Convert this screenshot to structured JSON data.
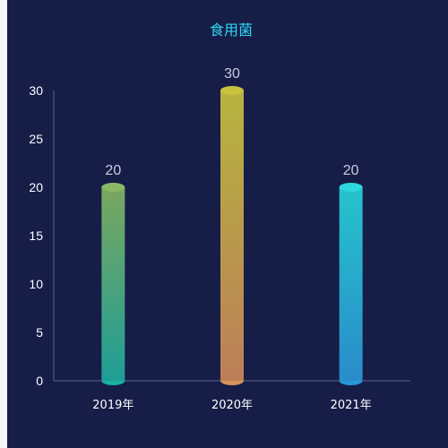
{
  "chart_data": {
    "type": "bar",
    "title": "食用菌",
    "categories": [
      "2019年",
      "2020年",
      "2021年"
    ],
    "values": [
      20,
      30,
      20
    ],
    "ylim": [
      0,
      30
    ],
    "yticks": [
      0,
      5,
      10,
      15,
      20,
      25,
      30
    ],
    "grid": false,
    "legend": "none",
    "bar_gradients": [
      {
        "top": "#7aa75f",
        "bottom": "#1e9e96"
      },
      {
        "top": "#b6b43f",
        "bottom": "#bc7f58"
      },
      {
        "top": "#25c3cc",
        "bottom": "#2a8ccb"
      }
    ],
    "cap_colors": [
      {
        "top": "#8ab966",
        "bottom": "#1bb0a3"
      },
      {
        "top": "#c8c23f",
        "bottom": "#d7925a"
      },
      {
        "top": "#2ed7dd",
        "bottom": "#2897d8"
      }
    ]
  }
}
